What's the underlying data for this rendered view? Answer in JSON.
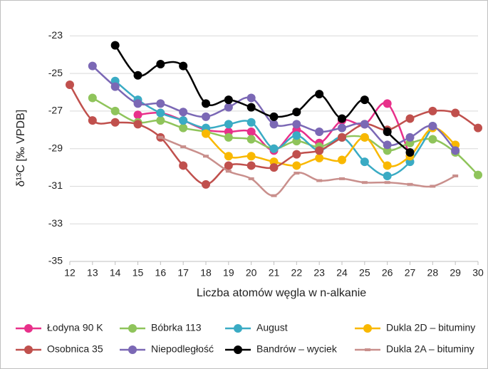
{
  "chart_data": {
    "type": "line",
    "x_label": "Liczba atomów węgla w n-alkanie",
    "y_label": "δ¹³C [‰ VPDB]",
    "x": [
      12,
      13,
      14,
      15,
      16,
      17,
      18,
      19,
      20,
      21,
      22,
      23,
      24,
      25,
      26,
      27,
      28,
      29,
      30
    ],
    "xlim": [
      12,
      30
    ],
    "xticks": [
      12,
      13,
      14,
      15,
      16,
      17,
      18,
      19,
      20,
      21,
      22,
      23,
      24,
      25,
      26,
      27,
      28,
      29,
      30
    ],
    "ylim": [
      -35,
      -22
    ],
    "yticks": [
      -35,
      -33,
      -31,
      -29,
      -27,
      -25,
      -23
    ],
    "grid": true,
    "legend": "bottom",
    "series": [
      {
        "name": "Łodyna 90 K",
        "color": "#e8308a",
        "marker": "circle",
        "values": [
          null,
          null,
          null,
          -27.2,
          -27.1,
          -27.5,
          -28.0,
          -28.1,
          -28.1,
          -29.1,
          -28.0,
          -28.7,
          -27.5,
          -27.7,
          -26.6,
          -29.4,
          null,
          null,
          null
        ]
      },
      {
        "name": "Bóbrka 113",
        "color": "#8fc45b",
        "marker": "circle",
        "values": [
          null,
          -26.3,
          -27.0,
          -27.6,
          -27.5,
          -27.9,
          -28.1,
          -28.4,
          -28.5,
          -29.0,
          -28.6,
          -28.9,
          -28.4,
          -28.4,
          -29.1,
          -28.7,
          -28.5,
          -29.2,
          -30.4
        ]
      },
      {
        "name": "August",
        "color": "#3aabc4",
        "marker": "circle",
        "values": [
          null,
          null,
          -25.4,
          -26.4,
          -27.1,
          -27.5,
          -27.9,
          -27.7,
          -27.6,
          -29.0,
          -28.3,
          -29.1,
          -28.4,
          -29.7,
          -30.45,
          -29.7,
          -27.8,
          null,
          null
        ]
      },
      {
        "name": "Dukla 2D – bituminy",
        "color": "#f9b800",
        "marker": "circle",
        "values": [
          null,
          null,
          null,
          null,
          null,
          null,
          -28.2,
          -29.4,
          -29.4,
          -29.7,
          -29.9,
          -29.5,
          -29.6,
          -28.4,
          -29.9,
          -29.4,
          -27.9,
          -28.8,
          null
        ]
      },
      {
        "name": "Osobnica 35",
        "color": "#c0504d",
        "marker": "circle",
        "values": [
          -25.6,
          -27.5,
          -27.6,
          -27.7,
          -28.4,
          -29.9,
          -30.9,
          -29.9,
          -29.9,
          -30.0,
          -29.3,
          -29.1,
          -28.4,
          -27.7,
          -28.0,
          -27.4,
          -27.0,
          -27.1,
          -27.9
        ]
      },
      {
        "name": "Niepodległość",
        "color": "#7b68b5",
        "marker": "circle",
        "values": [
          null,
          -24.6,
          -25.7,
          -26.6,
          -26.6,
          -27.05,
          -27.3,
          -26.8,
          -26.3,
          -27.7,
          -27.7,
          -28.1,
          -27.9,
          -27.7,
          -28.8,
          -28.4,
          -27.8,
          -29.1,
          null
        ]
      },
      {
        "name": "Bandrów – wyciek",
        "color": "#000000",
        "marker": "circle",
        "values": [
          null,
          null,
          -23.5,
          -25.1,
          -24.5,
          -24.6,
          -26.6,
          -26.4,
          -26.8,
          -27.3,
          -27.05,
          -26.1,
          -27.4,
          -26.4,
          -28.1,
          -29.2,
          null,
          null,
          null
        ]
      },
      {
        "name": "Dukla 2A – bituminy",
        "color": "#c98f8c",
        "marker": "dash",
        "values": [
          null,
          null,
          null,
          null,
          -28.4,
          -28.9,
          -29.4,
          -30.2,
          -30.6,
          -31.5,
          -30.3,
          -30.7,
          -30.6,
          -30.8,
          -30.8,
          -30.9,
          -31.0,
          -30.45,
          null
        ]
      }
    ]
  }
}
